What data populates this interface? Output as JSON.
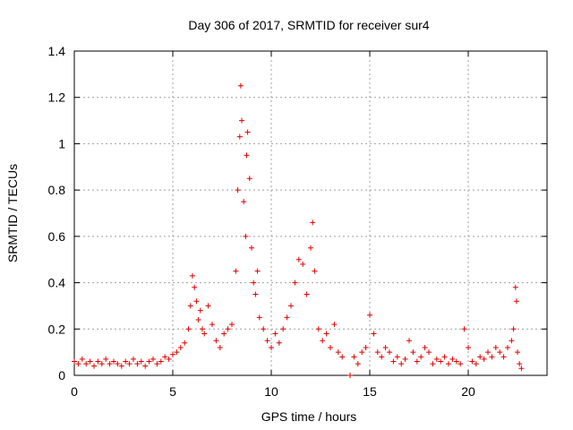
{
  "chart_data": {
    "type": "scatter",
    "title": "Day 306 of 2017, SRMTID for receiver sur4",
    "xlabel": "GPS time / hours",
    "ylabel": "SRMTID / TECUs",
    "xlim": [
      0,
      24
    ],
    "ylim": [
      0,
      1.4
    ],
    "grid": true,
    "legend": "none",
    "marker": "+",
    "color": "#e00000",
    "xticks": [
      0,
      5,
      10,
      15,
      20
    ],
    "xtick_labels": [
      "0",
      "5",
      "10",
      "15",
      "20"
    ],
    "yticks": [
      0,
      0.2,
      0.4,
      0.6,
      0.8,
      1.0,
      1.2,
      1.4
    ],
    "ytick_labels": [
      "0",
      "0.2",
      "0.4",
      "0.6",
      "0.8",
      "1",
      "1.2",
      "1.4"
    ],
    "series": [
      {
        "name": "sur4",
        "points": [
          [
            0.0,
            0.06
          ],
          [
            0.2,
            0.05
          ],
          [
            0.4,
            0.07
          ],
          [
            0.6,
            0.05
          ],
          [
            0.8,
            0.06
          ],
          [
            1.0,
            0.04
          ],
          [
            1.2,
            0.06
          ],
          [
            1.4,
            0.05
          ],
          [
            1.6,
            0.07
          ],
          [
            1.8,
            0.05
          ],
          [
            2.0,
            0.06
          ],
          [
            2.2,
            0.05
          ],
          [
            2.4,
            0.04
          ],
          [
            2.6,
            0.06
          ],
          [
            2.8,
            0.05
          ],
          [
            3.0,
            0.07
          ],
          [
            3.2,
            0.05
          ],
          [
            3.4,
            0.06
          ],
          [
            3.6,
            0.04
          ],
          [
            3.8,
            0.06
          ],
          [
            4.0,
            0.07
          ],
          [
            4.2,
            0.05
          ],
          [
            4.4,
            0.06
          ],
          [
            4.6,
            0.08
          ],
          [
            4.8,
            0.07
          ],
          [
            5.0,
            0.09
          ],
          [
            5.2,
            0.1
          ],
          [
            5.4,
            0.12
          ],
          [
            5.6,
            0.14
          ],
          [
            5.8,
            0.2
          ],
          [
            5.9,
            0.3
          ],
          [
            6.0,
            0.43
          ],
          [
            6.1,
            0.38
          ],
          [
            6.2,
            0.32
          ],
          [
            6.3,
            0.24
          ],
          [
            6.4,
            0.28
          ],
          [
            6.5,
            0.2
          ],
          [
            6.6,
            0.18
          ],
          [
            6.8,
            0.3
          ],
          [
            7.0,
            0.22
          ],
          [
            7.2,
            0.15
          ],
          [
            7.4,
            0.12
          ],
          [
            7.6,
            0.18
          ],
          [
            7.8,
            0.2
          ],
          [
            8.0,
            0.22
          ],
          [
            8.2,
            0.45
          ],
          [
            8.3,
            0.8
          ],
          [
            8.4,
            1.03
          ],
          [
            8.45,
            1.25
          ],
          [
            8.5,
            1.1
          ],
          [
            8.6,
            0.75
          ],
          [
            8.7,
            0.6
          ],
          [
            8.75,
            0.95
          ],
          [
            8.8,
            1.05
          ],
          [
            8.9,
            0.85
          ],
          [
            9.0,
            0.55
          ],
          [
            9.1,
            0.4
          ],
          [
            9.2,
            0.35
          ],
          [
            9.3,
            0.45
          ],
          [
            9.4,
            0.25
          ],
          [
            9.6,
            0.2
          ],
          [
            9.8,
            0.15
          ],
          [
            10.0,
            0.12
          ],
          [
            10.2,
            0.18
          ],
          [
            10.4,
            0.14
          ],
          [
            10.6,
            0.2
          ],
          [
            10.8,
            0.25
          ],
          [
            11.0,
            0.3
          ],
          [
            11.2,
            0.4
          ],
          [
            11.4,
            0.5
          ],
          [
            11.6,
            0.48
          ],
          [
            11.8,
            0.35
          ],
          [
            12.0,
            0.55
          ],
          [
            12.1,
            0.66
          ],
          [
            12.2,
            0.45
          ],
          [
            12.4,
            0.2
          ],
          [
            12.6,
            0.15
          ],
          [
            12.8,
            0.18
          ],
          [
            13.0,
            0.12
          ],
          [
            13.2,
            0.22
          ],
          [
            13.4,
            0.1
          ],
          [
            13.6,
            0.08
          ],
          [
            14.0,
            0.0
          ],
          [
            14.2,
            0.08
          ],
          [
            14.4,
            0.05
          ],
          [
            14.6,
            0.1
          ],
          [
            14.8,
            0.12
          ],
          [
            15.0,
            0.26
          ],
          [
            15.2,
            0.18
          ],
          [
            15.4,
            0.1
          ],
          [
            15.6,
            0.08
          ],
          [
            15.8,
            0.12
          ],
          [
            16.0,
            0.1
          ],
          [
            16.2,
            0.06
          ],
          [
            16.4,
            0.08
          ],
          [
            16.6,
            0.05
          ],
          [
            16.8,
            0.07
          ],
          [
            17.0,
            0.15
          ],
          [
            17.2,
            0.1
          ],
          [
            17.4,
            0.06
          ],
          [
            17.6,
            0.08
          ],
          [
            17.8,
            0.12
          ],
          [
            18.0,
            0.1
          ],
          [
            18.2,
            0.05
          ],
          [
            18.4,
            0.07
          ],
          [
            18.6,
            0.06
          ],
          [
            18.8,
            0.08
          ],
          [
            19.0,
            0.05
          ],
          [
            19.2,
            0.07
          ],
          [
            19.4,
            0.06
          ],
          [
            19.6,
            0.05
          ],
          [
            19.8,
            0.2
          ],
          [
            20.0,
            0.12
          ],
          [
            20.2,
            0.06
          ],
          [
            20.4,
            0.05
          ],
          [
            20.6,
            0.08
          ],
          [
            20.8,
            0.07
          ],
          [
            21.0,
            0.1
          ],
          [
            21.2,
            0.08
          ],
          [
            21.4,
            0.12
          ],
          [
            21.6,
            0.1
          ],
          [
            21.8,
            0.08
          ],
          [
            22.0,
            0.12
          ],
          [
            22.2,
            0.15
          ],
          [
            22.3,
            0.2
          ],
          [
            22.4,
            0.38
          ],
          [
            22.45,
            0.32
          ],
          [
            22.5,
            0.1
          ],
          [
            22.6,
            0.05
          ],
          [
            22.7,
            0.03
          ]
        ]
      }
    ]
  }
}
